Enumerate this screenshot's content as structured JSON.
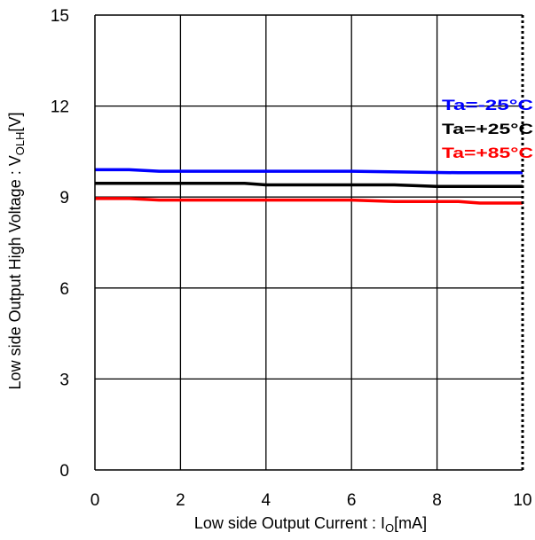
{
  "chart_data": {
    "type": "line",
    "xlabel": {
      "main": "Low side Output Current : I",
      "sub": "O",
      "unit": "[mA]"
    },
    "ylabel": {
      "main": "Low side Output High Voltage : V",
      "sub": "OLH",
      "unit": "[V]"
    },
    "xlim": [
      0,
      10
    ],
    "ylim": [
      0,
      15
    ],
    "xticks": [
      "0",
      "2",
      "4",
      "6",
      "8",
      "10"
    ],
    "yticks": [
      "0",
      "3",
      "6",
      "9",
      "12",
      "15"
    ],
    "grid": true,
    "legend_position": "right",
    "series": [
      {
        "name": "Ta=-25°C",
        "color": "#0000ff",
        "x": [
          0,
          0.8,
          1.5,
          3.5,
          6,
          8.5,
          10
        ],
        "y": [
          9.9,
          9.9,
          9.85,
          9.85,
          9.85,
          9.8,
          9.8
        ]
      },
      {
        "name": "Ta=+25°C",
        "color": "#000000",
        "x": [
          0,
          3.5,
          4,
          7,
          8,
          10
        ],
        "y": [
          9.45,
          9.45,
          9.4,
          9.4,
          9.35,
          9.35
        ]
      },
      {
        "name": "Ta=+85°C",
        "color": "#ff0000",
        "x": [
          0,
          0.8,
          1.5,
          6,
          7,
          8.5,
          9,
          10
        ],
        "y": [
          8.95,
          8.95,
          8.9,
          8.9,
          8.85,
          8.85,
          8.8,
          8.8
        ]
      }
    ]
  }
}
